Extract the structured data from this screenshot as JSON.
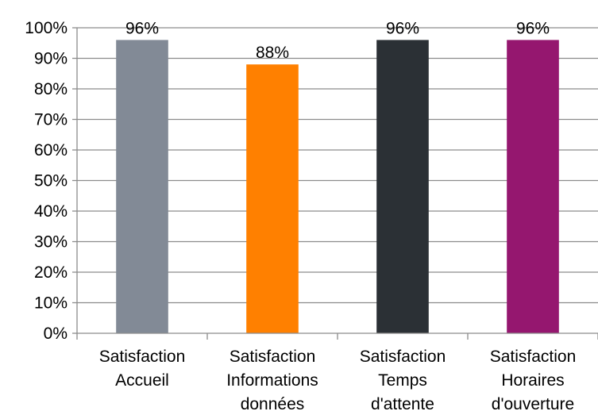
{
  "chart_data": {
    "type": "bar",
    "title": "",
    "xlabel": "",
    "ylabel": "",
    "categories": [
      [
        "Satisfaction",
        "Accueil"
      ],
      [
        "Satisfaction",
        "Informations",
        "données"
      ],
      [
        "Satisfaction",
        "Temps",
        "d'attente"
      ],
      [
        "Satisfaction",
        "Horaires",
        "d'ouverture"
      ]
    ],
    "values": [
      96,
      88,
      96,
      96
    ],
    "data_labels": [
      "96%",
      "88%",
      "96%",
      "96%"
    ],
    "colors": [
      "#828a96",
      "#ff8000",
      "#2b3035",
      "#95176f"
    ],
    "ylim": [
      0,
      100
    ],
    "yticks": [
      0,
      10,
      20,
      30,
      40,
      50,
      60,
      70,
      80,
      90,
      100
    ],
    "ytick_labels": [
      "0%",
      "10%",
      "20%",
      "30%",
      "40%",
      "50%",
      "60%",
      "70%",
      "80%",
      "90%",
      "100%"
    ],
    "grid": true,
    "gridline_color": "#8c8c8c"
  }
}
